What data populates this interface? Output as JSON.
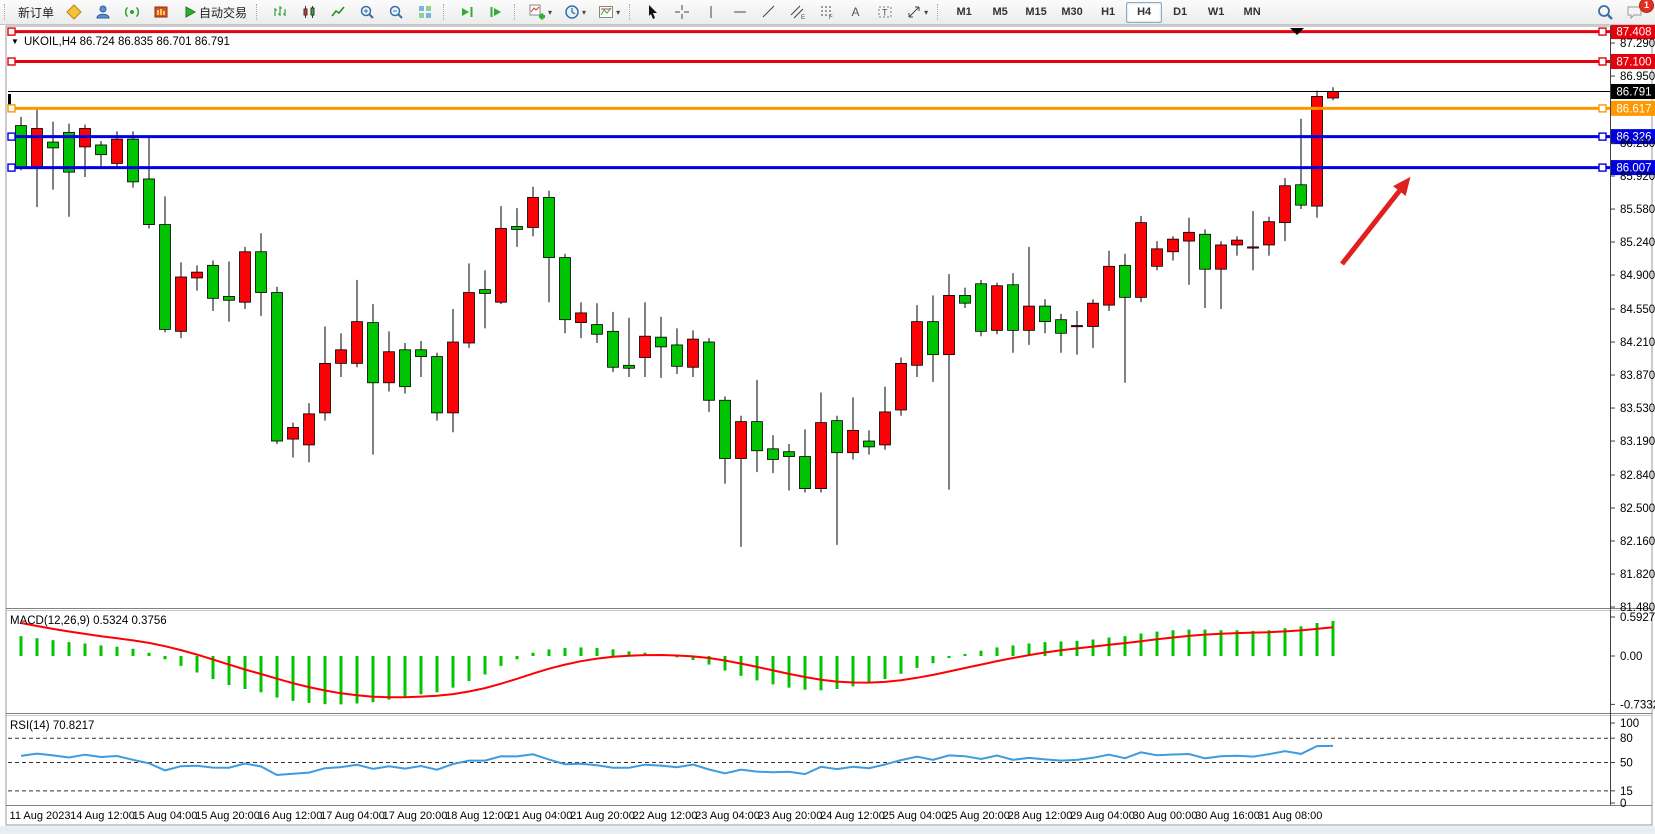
{
  "toolbar": {
    "new_order_label": "新订单",
    "auto_trading_label": "自动交易",
    "timeframes": [
      "M1",
      "M5",
      "M15",
      "M30",
      "H1",
      "H4",
      "D1",
      "W1",
      "MN"
    ],
    "active_timeframe": "H4",
    "notification_count": "1",
    "icons": [
      "diamond",
      "profile",
      "signal",
      "market-watch",
      "auto-trading-play",
      "bar-chart",
      "candlestick-chart",
      "line-chart",
      "zoom-in",
      "zoom-out",
      "tile-windows",
      "auto-scroll",
      "chart-shift",
      "add-indicator",
      "periods",
      "templates",
      "cursor",
      "crosshair",
      "vertical-line",
      "horizontal-line",
      "trendline",
      "equidistant-channel",
      "fibonacci",
      "text",
      "text-label",
      "arrows",
      "search",
      "chat"
    ]
  },
  "chart": {
    "title_text": "UKOIL,H4  86.724 86.835 86.701 86.791",
    "macd_label": "MACD(12,26,9) 0.5324 0.3756",
    "rsi_label": "RSI(14) 70.8217"
  },
  "chart_data": {
    "type": "candlestick",
    "symbol": "UKOIL",
    "timeframe": "H4",
    "ohlc_current": {
      "open": "86.724",
      "high": "86.835",
      "low": "86.701",
      "close": "86.791"
    },
    "colors": {
      "bull": "#fb0207",
      "bear": "#00c400",
      "wick": "#000000",
      "macd_hist": "#00c400",
      "macd_signal": "#ff0000",
      "rsi_line": "#3e9be0",
      "line_red": "#e8000a",
      "line_orange": "#ff9800",
      "line_blue": "#0000e0",
      "tag_black": "#000000"
    },
    "price_axis": {
      "ticks": [
        "87.290",
        "86.950",
        "86.260",
        "85.920",
        "85.580",
        "85.240",
        "84.900",
        "84.550",
        "84.210",
        "83.870",
        "83.530",
        "83.190",
        "82.840",
        "82.500",
        "82.160",
        "81.820",
        "81.480"
      ],
      "tick_values": [
        87.29,
        86.95,
        86.26,
        85.92,
        85.58,
        85.24,
        84.9,
        84.55,
        84.21,
        83.87,
        83.53,
        83.19,
        82.84,
        82.5,
        82.16,
        81.82,
        81.48
      ]
    },
    "hlines": [
      {
        "price": 87.408,
        "label": "87.408",
        "color": "#e8000a"
      },
      {
        "price": 87.1,
        "label": "87.100",
        "color": "#e8000a"
      },
      {
        "price": 86.617,
        "label": "86.617",
        "color": "#ff9800"
      },
      {
        "price": 86.326,
        "label": "86.326",
        "color": "#0000e0"
      },
      {
        "price": 86.007,
        "label": "86.007",
        "color": "#0000e0"
      }
    ],
    "current_price": {
      "value": 86.791,
      "label": "86.791"
    },
    "candles": [
      [
        86.44,
        86.53,
        85.98,
        86.01
      ],
      [
        86.01,
        86.61,
        85.6,
        86.41
      ],
      [
        86.27,
        86.48,
        85.78,
        86.21
      ],
      [
        86.37,
        86.46,
        85.5,
        85.96
      ],
      [
        86.22,
        86.45,
        85.91,
        86.41
      ],
      [
        86.24,
        86.28,
        86.02,
        86.14
      ],
      [
        86.05,
        86.38,
        86.0,
        86.3
      ],
      [
        86.3,
        86.38,
        85.8,
        85.86
      ],
      [
        85.89,
        86.33,
        85.38,
        85.42
      ],
      [
        85.42,
        85.71,
        84.31,
        84.34
      ],
      [
        84.32,
        85.03,
        84.25,
        84.88
      ],
      [
        84.87,
        85.0,
        84.74,
        84.93
      ],
      [
        85.0,
        85.05,
        84.53,
        84.66
      ],
      [
        84.68,
        85.04,
        84.42,
        84.64
      ],
      [
        84.62,
        85.19,
        84.55,
        85.14
      ],
      [
        85.14,
        85.33,
        84.48,
        84.72
      ],
      [
        84.72,
        84.78,
        83.16,
        83.19
      ],
      [
        83.21,
        83.38,
        83.02,
        83.33
      ],
      [
        83.15,
        83.58,
        82.97,
        83.47
      ],
      [
        83.48,
        84.37,
        83.4,
        83.99
      ],
      [
        83.99,
        84.3,
        83.85,
        84.13
      ],
      [
        83.99,
        84.85,
        83.95,
        84.42
      ],
      [
        84.41,
        84.6,
        83.05,
        83.79
      ],
      [
        83.79,
        84.32,
        83.7,
        84.11
      ],
      [
        84.13,
        84.2,
        83.68,
        83.75
      ],
      [
        84.13,
        84.22,
        83.85,
        84.06
      ],
      [
        84.06,
        84.1,
        83.4,
        83.48
      ],
      [
        83.48,
        84.55,
        83.28,
        84.21
      ],
      [
        84.2,
        85.02,
        84.15,
        84.72
      ],
      [
        84.75,
        84.95,
        84.35,
        84.71
      ],
      [
        84.62,
        85.61,
        84.6,
        85.38
      ],
      [
        85.4,
        85.59,
        85.19,
        85.37
      ],
      [
        85.39,
        85.81,
        85.3,
        85.7
      ],
      [
        85.7,
        85.77,
        84.62,
        85.08
      ],
      [
        85.08,
        85.12,
        84.3,
        84.44
      ],
      [
        84.41,
        84.62,
        84.25,
        84.51
      ],
      [
        84.39,
        84.61,
        84.2,
        84.29
      ],
      [
        84.32,
        84.52,
        83.9,
        83.95
      ],
      [
        83.97,
        84.46,
        83.85,
        83.94
      ],
      [
        84.05,
        84.62,
        83.85,
        84.27
      ],
      [
        84.26,
        84.47,
        83.84,
        84.16
      ],
      [
        84.18,
        84.35,
        83.88,
        83.96
      ],
      [
        83.95,
        84.33,
        83.85,
        84.24
      ],
      [
        84.21,
        84.25,
        83.49,
        83.61
      ],
      [
        83.61,
        83.65,
        82.75,
        83.01
      ],
      [
        83.01,
        83.45,
        82.1,
        83.39
      ],
      [
        83.39,
        83.82,
        82.87,
        83.09
      ],
      [
        83.11,
        83.25,
        82.86,
        83.0
      ],
      [
        83.08,
        83.16,
        82.68,
        83.03
      ],
      [
        83.03,
        83.31,
        82.66,
        82.7
      ],
      [
        82.7,
        83.69,
        82.66,
        83.38
      ],
      [
        83.4,
        83.45,
        82.12,
        83.07
      ],
      [
        83.07,
        83.64,
        83.0,
        83.3
      ],
      [
        83.19,
        83.3,
        83.05,
        83.13
      ],
      [
        83.15,
        83.75,
        83.1,
        83.49
      ],
      [
        83.51,
        84.05,
        83.45,
        83.99
      ],
      [
        83.97,
        84.59,
        83.85,
        84.42
      ],
      [
        84.42,
        84.69,
        83.8,
        84.08
      ],
      [
        84.08,
        84.91,
        82.69,
        84.69
      ],
      [
        84.69,
        84.77,
        84.56,
        84.61
      ],
      [
        84.81,
        84.85,
        84.27,
        84.32
      ],
      [
        84.33,
        84.82,
        84.29,
        84.79
      ],
      [
        84.8,
        84.92,
        84.1,
        84.33
      ],
      [
        84.33,
        85.19,
        84.18,
        84.58
      ],
      [
        84.58,
        84.65,
        84.3,
        84.42
      ],
      [
        84.44,
        84.5,
        84.1,
        84.3
      ],
      [
        84.38,
        84.53,
        84.08,
        84.38
      ],
      [
        84.37,
        84.65,
        84.15,
        84.61
      ],
      [
        84.59,
        85.15,
        84.53,
        84.99
      ],
      [
        85.0,
        85.12,
        83.79,
        84.67
      ],
      [
        84.67,
        85.51,
        84.62,
        85.44
      ],
      [
        84.99,
        85.25,
        84.95,
        85.17
      ],
      [
        85.14,
        85.3,
        85.05,
        85.27
      ],
      [
        85.25,
        85.49,
        84.8,
        85.34
      ],
      [
        85.32,
        85.37,
        84.56,
        84.96
      ],
      [
        84.96,
        85.25,
        84.55,
        85.21
      ],
      [
        85.21,
        85.3,
        85.1,
        85.26
      ],
      [
        85.19,
        85.56,
        84.95,
        85.19
      ],
      [
        85.21,
        85.5,
        85.1,
        85.45
      ],
      [
        85.44,
        85.9,
        85.25,
        85.82
      ],
      [
        85.83,
        86.51,
        85.58,
        85.62
      ],
      [
        85.61,
        86.8,
        85.49,
        86.74
      ],
      [
        86.724,
        86.835,
        86.701,
        86.791
      ]
    ],
    "macd": {
      "label": "MACD(12,26,9) 0.5324 0.3756",
      "scale_labels": [
        "0.5927",
        "0.00",
        "-0.7332"
      ],
      "scale_values": [
        0.5927,
        0.0,
        -0.7332
      ],
      "values": [
        0.3,
        0.27,
        0.24,
        0.21,
        0.19,
        0.16,
        0.14,
        0.11,
        0.05,
        -0.05,
        -0.15,
        -0.25,
        -0.35,
        -0.44,
        -0.5,
        -0.55,
        -0.63,
        -0.68,
        -0.71,
        -0.73,
        -0.733,
        -0.72,
        -0.7,
        -0.66,
        -0.62,
        -0.58,
        -0.55,
        -0.48,
        -0.38,
        -0.28,
        -0.15,
        -0.05,
        0.05,
        0.1,
        0.12,
        0.13,
        0.12,
        0.1,
        0.07,
        0.05,
        0.02,
        -0.02,
        -0.06,
        -0.13,
        -0.22,
        -0.3,
        -0.37,
        -0.43,
        -0.48,
        -0.51,
        -0.52,
        -0.5,
        -0.46,
        -0.41,
        -0.35,
        -0.27,
        -0.18,
        -0.11,
        -0.03,
        0.03,
        0.08,
        0.13,
        0.16,
        0.19,
        0.21,
        0.22,
        0.23,
        0.25,
        0.28,
        0.3,
        0.34,
        0.37,
        0.39,
        0.4,
        0.4,
        0.39,
        0.39,
        0.38,
        0.39,
        0.42,
        0.45,
        0.5,
        0.53
      ]
    },
    "rsi": {
      "label": "RSI(14) 70.8217",
      "current": 70.8217,
      "levels": [
        80,
        50,
        15
      ],
      "scale_labels": [
        "100",
        "80",
        "50",
        "15",
        "0"
      ],
      "scale_values": [
        100,
        80,
        50,
        15,
        0
      ]
    },
    "time_labels": [
      "11 Aug 2023",
      "14 Aug 12:00",
      "15 Aug 04:00",
      "15 Aug 20:00",
      "16 Aug 12:00",
      "17 Aug 04:00",
      "17 Aug 20:00",
      "18 Aug 12:00",
      "21 Aug 04:00",
      "21 Aug 20:00",
      "22 Aug 12:00",
      "23 Aug 04:00",
      "23 Aug 20:00",
      "24 Aug 12:00",
      "25 Aug 04:00",
      "25 Aug 20:00",
      "28 Aug 12:00",
      "29 Aug 04:00",
      "30 Aug 00:00",
      "30 Aug 16:00",
      "31 Aug 08:00"
    ],
    "arrow_annotation": {
      "from": [
        1342,
        264
      ],
      "to": [
        1408,
        180
      ],
      "color": "#e02020"
    }
  }
}
